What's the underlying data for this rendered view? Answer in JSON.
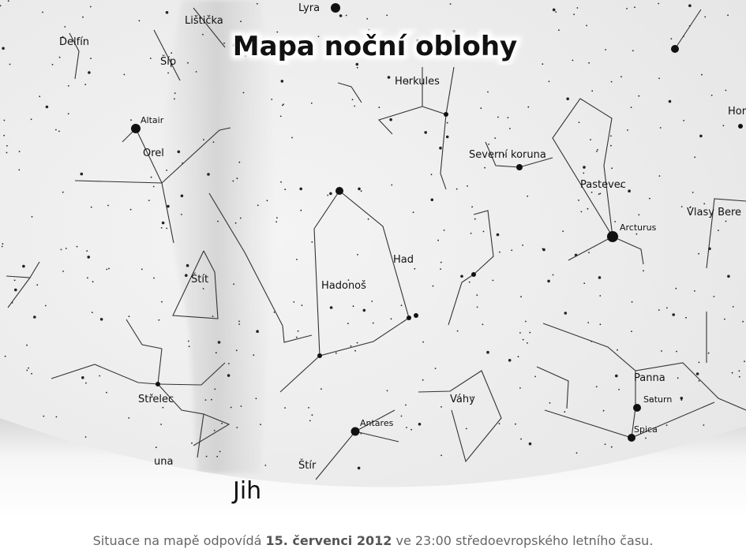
{
  "title": "Mapa noční oblohy",
  "labels": {
    "lyra": "Lyra",
    "listicka": "Lištička",
    "delfin": "Delfín",
    "sip": "Šíp",
    "herkules": "Herkules",
    "altair": "Altair",
    "orel": "Orel",
    "hor": "Hor",
    "severni_koruna": "Severní koruna",
    "pastevec": "Pastevec",
    "vlasy": "Vlasy Bere",
    "arcturus": "Arcturus",
    "had": "Had",
    "hadonos": "Hadonoš",
    "stit": "Štít",
    "strelec": "Střelec",
    "antares": "Antares",
    "vahy": "Váhy",
    "panna": "Panna",
    "saturn": "Saturn",
    "spica": "Spica",
    "stir": "Štír",
    "koruna": "una"
  },
  "direction": "Jih",
  "footer": {
    "before": "Situace na mapě odpovídá ",
    "date": "15. červenci 2012",
    "after": " ve 23:00 středoevropského letního času."
  }
}
